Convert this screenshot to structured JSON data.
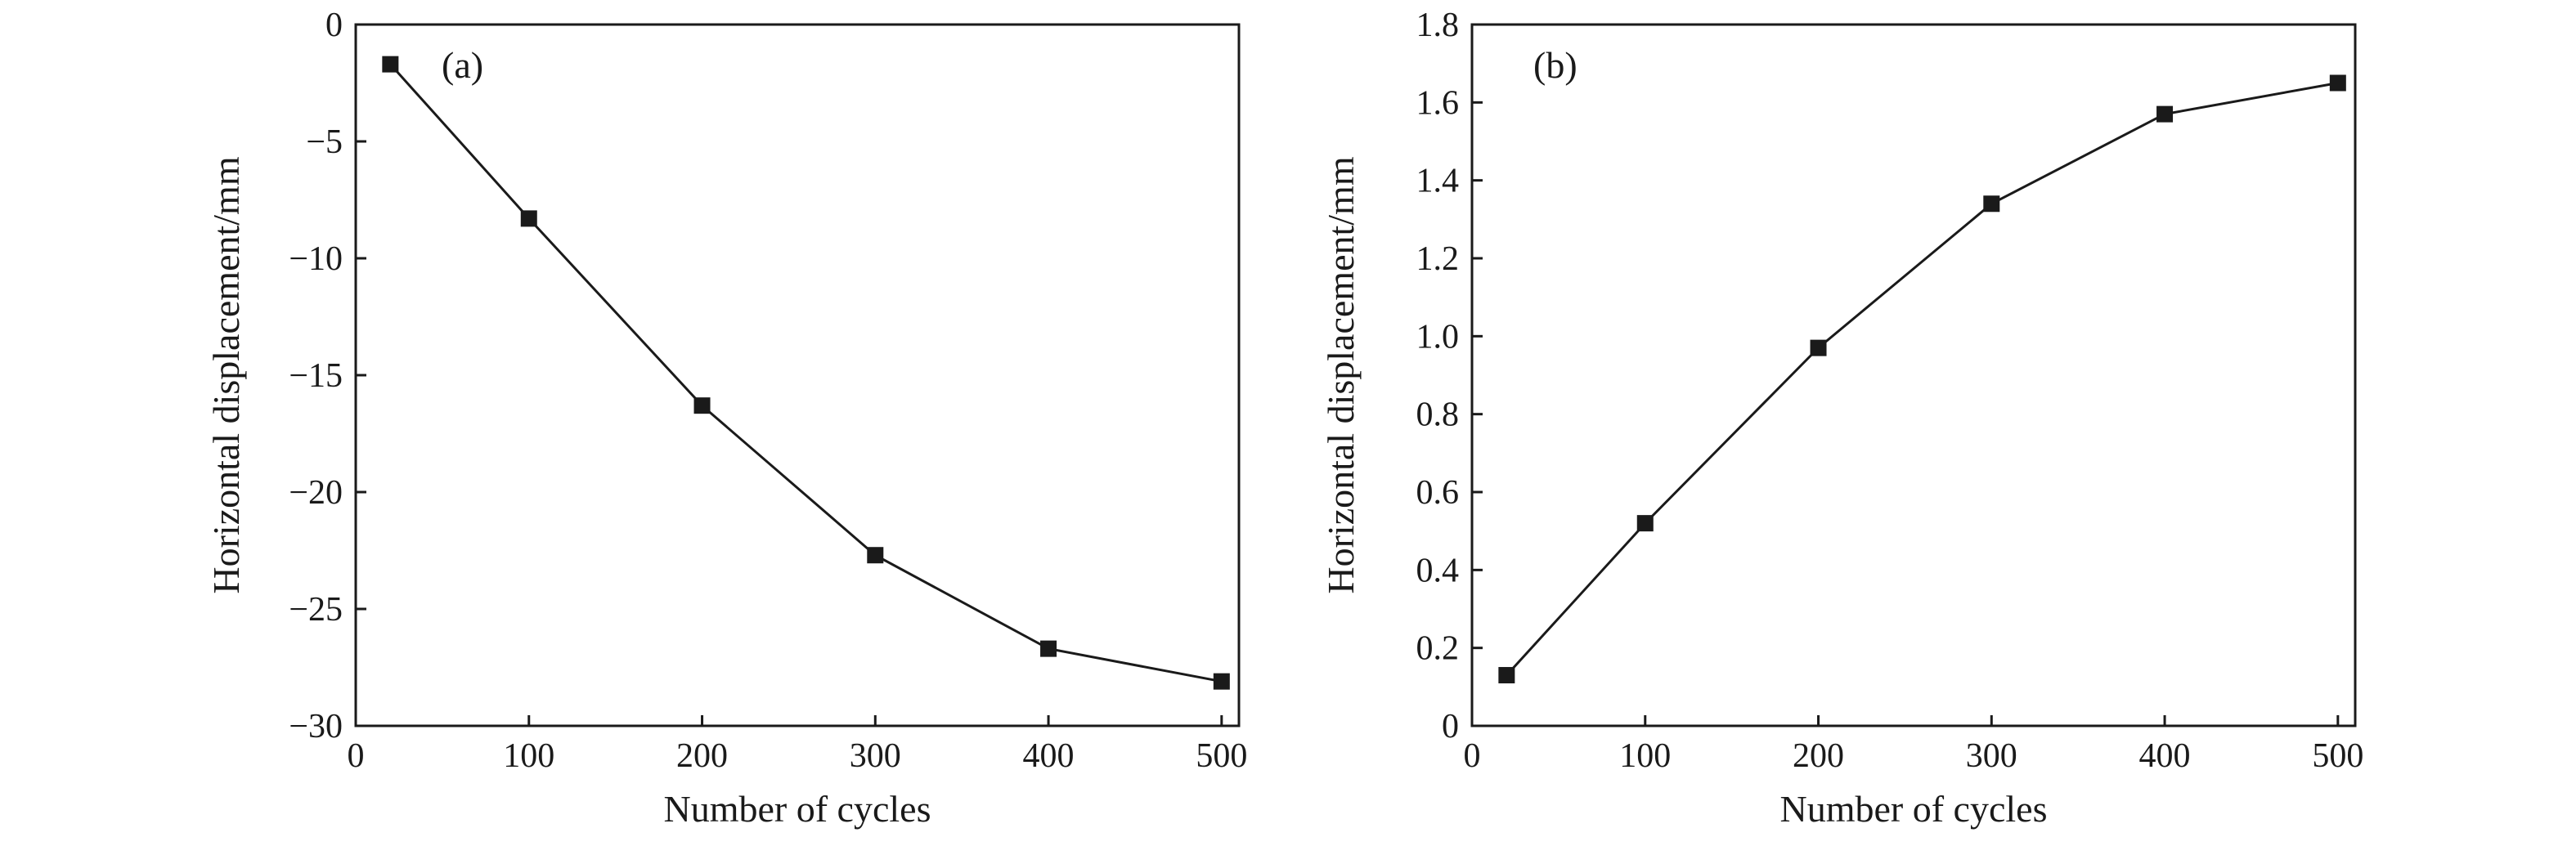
{
  "chart_data": [
    {
      "type": "line",
      "panel_label": "(a)",
      "xlabel": "Number of cycles",
      "ylabel": "Horizontal displacement/mm",
      "xlim": [
        0,
        510
      ],
      "ylim": [
        -30,
        0
      ],
      "xticks": [
        0,
        100,
        200,
        300,
        400,
        500
      ],
      "xtick_labels": [
        "0",
        "100",
        "200",
        "300",
        "400",
        "500"
      ],
      "yticks": [
        0,
        -5,
        -10,
        -15,
        -20,
        -25,
        -30
      ],
      "ytick_labels": [
        "0",
        "−5",
        "−10",
        "−15",
        "−20",
        "−25",
        "−30"
      ],
      "grid": false,
      "marker": "square",
      "series": [
        {
          "x": [
            20,
            100,
            200,
            300,
            400,
            500
          ],
          "y": [
            -1.7,
            -8.3,
            -16.3,
            -22.7,
            -26.7,
            -28.1
          ]
        }
      ]
    },
    {
      "type": "line",
      "panel_label": "(b)",
      "xlabel": "Number of cycles",
      "ylabel": "Horizontal displacement/mm",
      "xlim": [
        0,
        510
      ],
      "ylim": [
        0,
        1.8
      ],
      "xticks": [
        0,
        100,
        200,
        300,
        400,
        500
      ],
      "xtick_labels": [
        "0",
        "100",
        "200",
        "300",
        "400",
        "500"
      ],
      "yticks": [
        0,
        0.2,
        0.4,
        0.6,
        0.8,
        1.0,
        1.2,
        1.4,
        1.6,
        1.8
      ],
      "ytick_labels": [
        "0",
        "0.2",
        "0.4",
        "0.6",
        "0.8",
        "1.0",
        "1.2",
        "1.4",
        "1.6",
        "1.8"
      ],
      "grid": false,
      "marker": "square",
      "series": [
        {
          "x": [
            20,
            100,
            200,
            300,
            400,
            500
          ],
          "y": [
            0.13,
            0.52,
            0.97,
            1.34,
            1.57,
            1.65
          ]
        }
      ]
    }
  ]
}
